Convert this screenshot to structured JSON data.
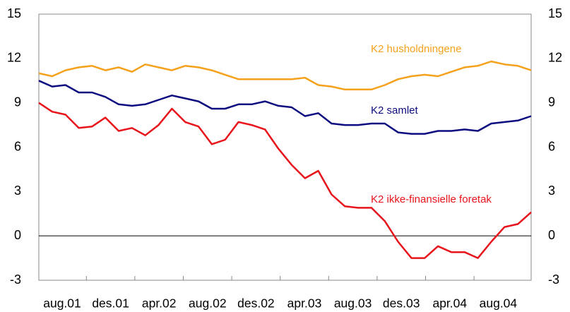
{
  "chart_data": {
    "type": "line",
    "x_labels": [
      "aug.01",
      "des.01",
      "apr.02",
      "aug.02",
      "des.02",
      "apr.03",
      "aug.03",
      "des.03",
      "apr.04",
      "aug.04"
    ],
    "series": [
      {
        "name": "K2 husholdningene",
        "color": "#f5a11c",
        "values": [
          11.0,
          10.8,
          11.2,
          11.4,
          11.5,
          11.2,
          11.4,
          11.1,
          11.6,
          11.4,
          11.2,
          11.5,
          11.4,
          11.2,
          10.9,
          10.6,
          10.6,
          10.6,
          10.6,
          10.6,
          10.7,
          10.2,
          10.1,
          9.9,
          9.9,
          9.9,
          10.2,
          10.6,
          10.8,
          10.9,
          10.8,
          11.1,
          11.4,
          11.5,
          11.8,
          11.6,
          11.5,
          11.2
        ]
      },
      {
        "name": "K2 samlet",
        "color": "#0c0c80",
        "values": [
          10.5,
          10.1,
          10.2,
          9.7,
          9.7,
          9.4,
          8.9,
          8.8,
          8.9,
          9.2,
          9.5,
          9.3,
          9.1,
          8.6,
          8.6,
          8.9,
          8.9,
          9.1,
          8.8,
          8.7,
          8.1,
          8.3,
          7.6,
          7.5,
          7.5,
          7.6,
          7.6,
          7.0,
          6.9,
          6.9,
          7.1,
          7.1,
          7.2,
          7.1,
          7.6,
          7.7,
          7.8,
          8.1
        ]
      },
      {
        "name": "K2 ikke-finansielle foretak",
        "color": "#e8141c",
        "values": [
          9.0,
          8.4,
          8.2,
          7.3,
          7.4,
          8.0,
          7.1,
          7.3,
          6.8,
          7.5,
          8.6,
          7.7,
          7.4,
          6.2,
          6.5,
          7.7,
          7.5,
          7.2,
          5.9,
          4.8,
          3.9,
          4.4,
          2.8,
          2.0,
          1.9,
          1.9,
          1.0,
          -0.4,
          -1.5,
          -1.5,
          -0.7,
          -1.1,
          -1.1,
          -1.5,
          -0.4,
          0.6,
          0.8,
          1.6
        ]
      }
    ],
    "ylim": [
      -3,
      15
    ],
    "yticks": [
      -3,
      0,
      3,
      6,
      9,
      12,
      15
    ],
    "y2lim": [
      -3,
      15
    ],
    "y2ticks": [
      -3,
      0,
      3,
      6,
      9,
      12,
      15
    ],
    "reference_line": 0
  }
}
